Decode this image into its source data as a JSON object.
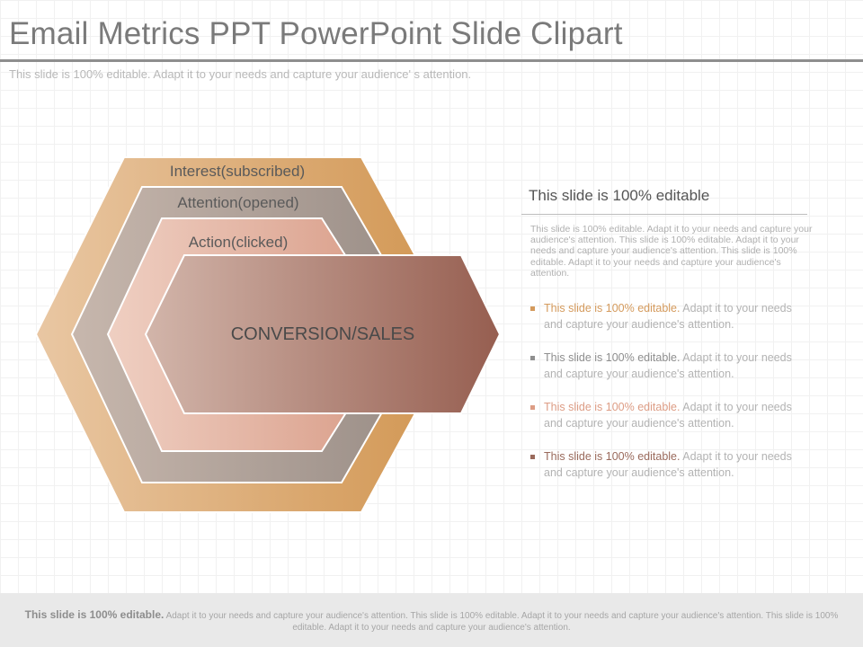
{
  "header": {
    "title": "Email Metrics PPT PowerPoint Slide Clipart",
    "subtitle": "This slide is 100% editable. Adapt it to your needs and capture your audience' s attention."
  },
  "diagram": {
    "levels": [
      {
        "label": "Interest(subscribed)",
        "color_start": "#e9c7a3",
        "color_end": "#d19550"
      },
      {
        "label": "Attention(opened)",
        "color_start": "#c7b7ad",
        "color_end": "#988c85"
      },
      {
        "label": "Action(clicked)",
        "color_start": "#efcfc2",
        "color_end": "#d89b86"
      }
    ],
    "center": {
      "label": "CONVERSION/SALES",
      "color_start": "#d2b5aa",
      "color_end": "#965e50"
    }
  },
  "panel": {
    "heading": "This slide is 100% editable",
    "body": "This slide is 100% editable. Adapt it to your needs and capture your audience's attention. This slide is 100% editable. Adapt it to your needs and capture your audience's attention. This slide is 100% editable. Adapt it to your needs and capture your audience's attention.",
    "bullets": [
      {
        "lead": "This slide is 100% editable.",
        "rest": " Adapt it to your needs and capture your audience's attention.",
        "color": "#d49a5c"
      },
      {
        "lead": "This slide is 100% editable.",
        "rest": " Adapt it to your needs and capture your audience's attention.",
        "color": "#8f8f8f"
      },
      {
        "lead": "This slide is 100% editable.",
        "rest": " Adapt it to your needs and capture your audience's attention.",
        "color": "#dd9d85"
      },
      {
        "lead": "This slide is 100% editable.",
        "rest": " Adapt it to your needs and capture your audience's attention.",
        "color": "#9a6a5c"
      }
    ]
  },
  "footer": {
    "lead": "This slide is 100%  editable.",
    "text": " Adapt it to your needs and capture your audience's attention. This slide is 100% editable.  Adapt it to your needs and capture your audience's attention. This slide is 100% editable.  Adapt it to your needs and capture your audience's attention."
  }
}
